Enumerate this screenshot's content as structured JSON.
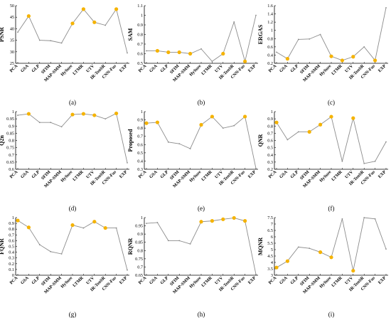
{
  "colors": {
    "line": "#8c8c8c",
    "highlight": "#f5b300",
    "axis": "#000000",
    "grid": "#e8e8e8"
  },
  "categories": [
    "PCA",
    "GSA",
    "GLP",
    "SFIM",
    "MAP-SMM",
    "HySure",
    "LTMR",
    "UTV",
    "IR-TenSR",
    "CNN-Fus",
    "EXP"
  ],
  "chart_data": [
    {
      "type": "line",
      "panel": "(a)",
      "ylabel": "PSNR",
      "ylim": [
        25,
        50
      ],
      "yticks": [
        "25",
        "30",
        "35",
        "40",
        "45",
        "50"
      ],
      "values": [
        38.5,
        45.5,
        35.0,
        34.8,
        33.8,
        42.3,
        48.5,
        42.8,
        41.5,
        48.5,
        29.5
      ],
      "highlight": [
        1,
        5,
        6,
        7,
        9
      ]
    },
    {
      "type": "line",
      "panel": "(b)",
      "ylabel": "SAM",
      "ylim": [
        0.5,
        1.1
      ],
      "yticks": [
        "0.5",
        "0.6",
        "0.7",
        "0.8",
        "0.9",
        "1",
        "1.1"
      ],
      "values": [
        0.63,
        0.63,
        0.615,
        0.615,
        0.6,
        0.65,
        0.52,
        0.6,
        0.93,
        0.52,
        1.0
      ],
      "highlight": [
        1,
        2,
        3,
        4,
        7,
        9
      ]
    },
    {
      "type": "line",
      "panel": "(c)",
      "ylabel": "ERGAS",
      "ylim": [
        0.2,
        1.6
      ],
      "yticks": [
        "0.2",
        "0.4",
        "0.6",
        "0.8",
        "1",
        "1.2",
        "1.4",
        "1.6"
      ],
      "values": [
        0.47,
        0.31,
        0.78,
        0.79,
        0.9,
        0.37,
        0.27,
        0.36,
        0.6,
        0.27,
        1.55
      ],
      "highlight": [
        1,
        5,
        6,
        7,
        9
      ]
    },
    {
      "type": "line",
      "panel": "(d)",
      "ylabel": "Q2n",
      "ylim": [
        0.6,
        1
      ],
      "yticks": [
        "0.6",
        "0.65",
        "0.7",
        "0.75",
        "0.8",
        "0.85",
        "0.9",
        "0.95",
        "1"
      ],
      "values": [
        0.975,
        0.985,
        0.925,
        0.925,
        0.895,
        0.98,
        0.985,
        0.975,
        0.95,
        0.988,
        0.645
      ],
      "highlight": [
        1,
        5,
        6,
        7,
        9
      ]
    },
    {
      "type": "line",
      "panel": "(e)",
      "ylabel": "Proposed",
      "ylim": [
        0.3,
        1
      ],
      "yticks": [
        "0.3",
        "0.4",
        "0.5",
        "0.6",
        "0.7",
        "0.8",
        "0.9",
        "1"
      ],
      "values": [
        0.86,
        0.87,
        0.63,
        0.61,
        0.55,
        0.84,
        0.94,
        0.8,
        0.83,
        0.94,
        0.31
      ],
      "highlight": [
        0,
        1,
        5,
        6,
        9
      ]
    },
    {
      "type": "line",
      "panel": "(f)",
      "ylabel": "QNR",
      "ylim": [
        0.2,
        1
      ],
      "yticks": [
        "0.2",
        "0.3",
        "0.4",
        "0.5",
        "0.6",
        "0.7",
        "0.8",
        "0.9",
        "1"
      ],
      "values": [
        0.85,
        0.61,
        0.72,
        0.72,
        0.82,
        0.93,
        0.31,
        0.91,
        0.28,
        0.31,
        0.58
      ],
      "highlight": [
        0,
        3,
        4,
        5,
        7
      ]
    },
    {
      "type": "line",
      "panel": "(g)",
      "ylabel": "FQNR",
      "ylim": [
        0,
        1
      ],
      "yticks": [
        "0",
        "0.1",
        "0.2",
        "0.3",
        "0.4",
        "0.5",
        "0.6",
        "0.7",
        "0.8",
        "0.9",
        "1"
      ],
      "values": [
        0.95,
        0.83,
        0.53,
        0.41,
        0.37,
        0.87,
        0.82,
        0.93,
        0.82,
        0.82,
        0.09
      ],
      "highlight": [
        0,
        1,
        5,
        7,
        8
      ]
    },
    {
      "type": "line",
      "panel": "(h)",
      "ylabel": "RQNR",
      "ylim": [
        0.65,
        1
      ],
      "yticks": [
        "0.65",
        "0.7",
        "0.75",
        "0.8",
        "0.85",
        "0.9",
        "0.95",
        "1"
      ],
      "values": [
        0.965,
        0.97,
        0.86,
        0.86,
        0.84,
        0.975,
        0.98,
        0.99,
        0.998,
        0.98,
        0.655
      ],
      "highlight": [
        5,
        6,
        7,
        8,
        9
      ]
    },
    {
      "type": "line",
      "panel": "(i)",
      "ylabel": "MQNR",
      "ylim": [
        3,
        7.5
      ],
      "yticks": [
        "3",
        "3.5",
        "4",
        "4.5",
        "5",
        "5.5",
        "6",
        "6.5",
        "7",
        "7.5"
      ],
      "values": [
        3.6,
        4.1,
        5.2,
        5.1,
        4.8,
        4.4,
        7.4,
        3.35,
        7.5,
        7.4,
        5.05
      ],
      "highlight": [
        0,
        1,
        4,
        5,
        7
      ]
    }
  ]
}
